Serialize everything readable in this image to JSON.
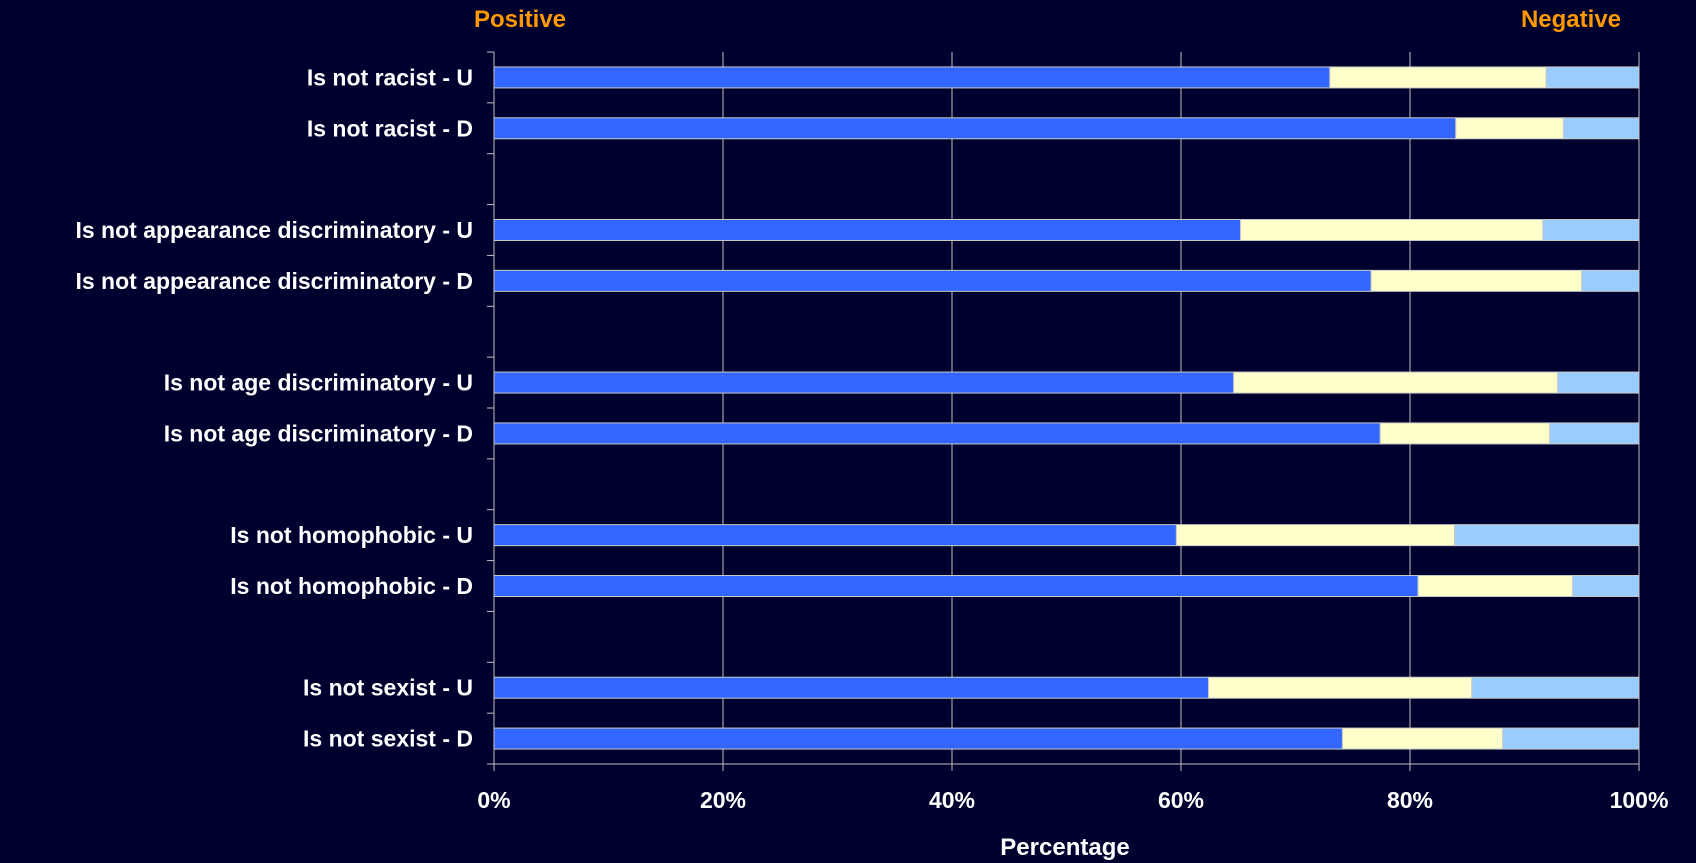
{
  "chart_data": {
    "type": "bar",
    "stacked": true,
    "orientation": "horizontal",
    "header_left": "Positive",
    "header_right": "Negative",
    "xlabel": "Percentage",
    "xlim": [
      0,
      100
    ],
    "xticks": [
      "0%",
      "20%",
      "40%",
      "60%",
      "80%",
      "100%"
    ],
    "grid": true,
    "categories": [
      "Is not racist - U",
      "Is not racist - D",
      "Is not appearance discriminatory - U",
      "Is not appearance discriminatory - D",
      "Is not age discriminatory - U",
      "Is not age discriminatory - D",
      "Is not homophobic - U",
      "Is not homophobic - D",
      "Is not sexist - U",
      "Is not sexist - D"
    ],
    "series": [
      {
        "values": [
          73,
          84,
          65.2,
          76.6,
          64.6,
          77.4,
          59.6,
          80.7,
          62.4,
          74.1
        ]
      },
      {
        "values": [
          18.9,
          9.4,
          26.4,
          18.4,
          28.3,
          14.8,
          24.3,
          13.5,
          23,
          14
        ]
      },
      {
        "values": [
          8.1,
          6.6,
          8.4,
          5,
          7.1,
          7.8,
          16.1,
          5.8,
          14.6,
          11.9
        ]
      }
    ],
    "colors": {
      "background": "#00002e",
      "series": [
        "#3366ff",
        "#ffffcc",
        "#99ccff"
      ],
      "bar_outline": "#c8c8c8",
      "grid": "#c0c0c0",
      "header": "#ff9900",
      "text": "#ffffff"
    }
  }
}
